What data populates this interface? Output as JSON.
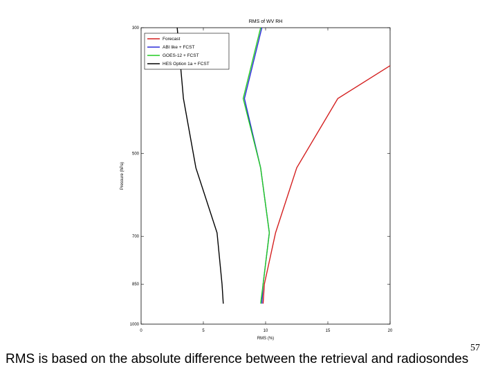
{
  "chart_data": {
    "type": "line",
    "title": "RMS of WV RH",
    "xlabel": "RMS (%)",
    "ylabel": "Pressure (hPa)",
    "xlim": [
      0,
      20
    ],
    "ylim": [
      300,
      1000
    ],
    "y_scale": "log",
    "x_ticks": [
      "0",
      "5",
      "10",
      "15",
      "20"
    ],
    "y_ticks": [
      {
        "value": 300,
        "label": "300"
      },
      {
        "value": 500,
        "label": "500"
      },
      {
        "value": 700,
        "label": "700"
      },
      {
        "value": 850,
        "label": "850"
      },
      {
        "value": 1000,
        "label": "1000"
      }
    ],
    "legend_position": "top-left",
    "series": [
      {
        "name": "Forecast",
        "color": "#d42020",
        "x": [
          20.0,
          15.8,
          12.5,
          10.8,
          9.9,
          9.8
        ],
        "y": [
          350,
          400,
          530,
          690,
          850,
          920
        ]
      },
      {
        "name": "ABI like + FCST",
        "color": "#2a2ad8",
        "x": [
          9.7,
          8.3,
          9.6,
          10.3,
          9.8,
          9.7
        ],
        "y": [
          300,
          400,
          530,
          690,
          850,
          920
        ]
      },
      {
        "name": "GOES-12 + FCST",
        "color": "#22cc22",
        "x": [
          9.6,
          8.2,
          9.6,
          10.3,
          9.8,
          9.6
        ],
        "y": [
          300,
          400,
          530,
          690,
          850,
          920
        ]
      },
      {
        "name": "HES Option 1a + FCST",
        "color": "#000000",
        "x": [
          2.9,
          3.4,
          4.4,
          6.1,
          6.5,
          6.6
        ],
        "y": [
          300,
          400,
          530,
          690,
          850,
          920
        ]
      }
    ]
  },
  "caption": "RMS is based on the absolute difference between the retrieval and radiosondes",
  "page_number": "57"
}
